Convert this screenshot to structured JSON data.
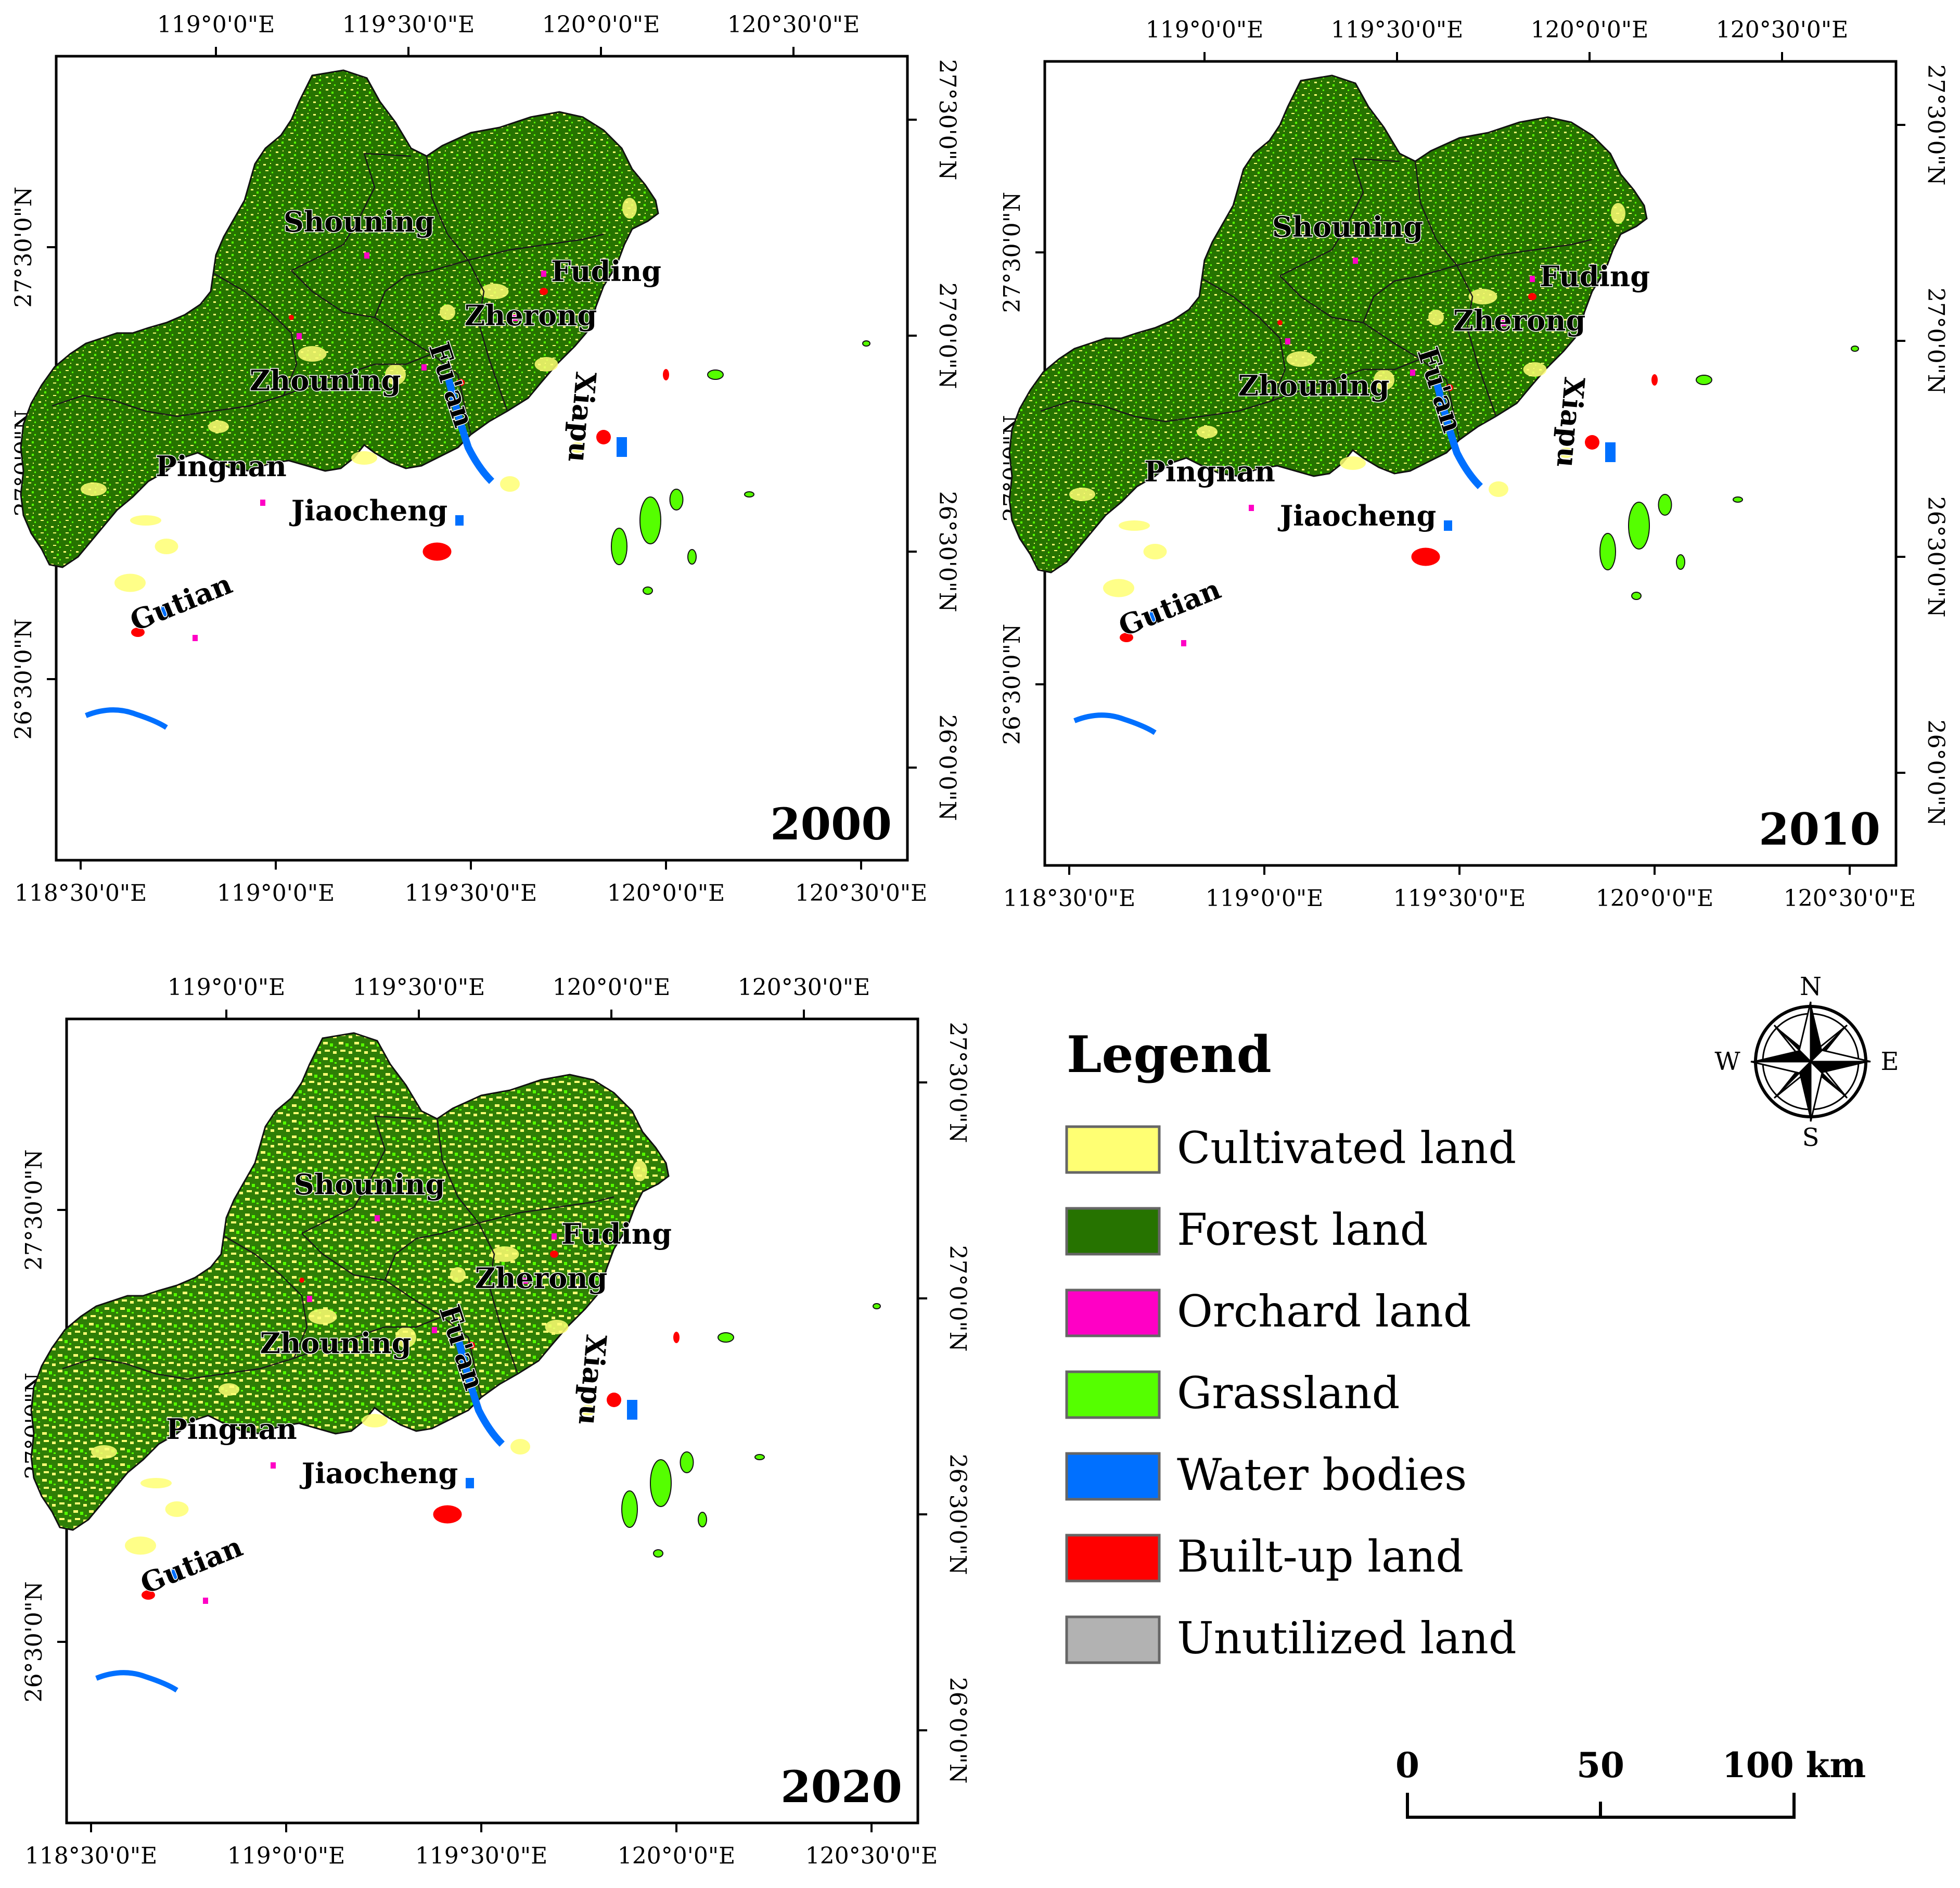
{
  "colors": {
    "cultivated": "#ffff73",
    "forest": "#267300",
    "orchard": "#ff00c5",
    "grassland": "#55ff00",
    "water": "#0070ff",
    "builtup": "#ff0000",
    "unutilized": "#b2b2b2"
  },
  "axes": {
    "top_lon_labels": [
      "119°0'0\"E",
      "119°30'0\"E",
      "120°0'0\"E",
      "120°30'0\"E"
    ],
    "bottom_lon_labels": [
      "118°30'0\"E",
      "119°0'0\"E",
      "119°30'0\"E",
      "120°0'0\"E",
      "120°30'0\"E"
    ],
    "left_lat_labels": [
      "27°30'0\"N",
      "27°0'0\"N",
      "26°30'0\"N"
    ],
    "right_lat_labels": [
      "27°30'0\"N",
      "27°0'0\"N",
      "26°30'0\"N",
      "26°0'0\"N"
    ]
  },
  "panels": [
    {
      "year": "2000"
    },
    {
      "year": "2010"
    },
    {
      "year": "2020"
    }
  ],
  "counties": [
    "Shouning",
    "Fuding",
    "Zherong",
    "Zhouning",
    "Fu'an",
    "Xiapu",
    "Pingnan",
    "Jiaocheng",
    "Gutian"
  ],
  "legend": {
    "title": "Legend",
    "items": [
      {
        "label": "Cultivated land",
        "color": "#ffff73"
      },
      {
        "label": "Forest land",
        "color": "#267300"
      },
      {
        "label": "Orchard land",
        "color": "#ff00c5"
      },
      {
        "label": "Grassland",
        "color": "#55ff00"
      },
      {
        "label": "Water bodies",
        "color": "#0070ff"
      },
      {
        "label": "Built-up land",
        "color": "#ff0000"
      },
      {
        "label": "Unutilized land",
        "color": "#b2b2b2"
      }
    ]
  },
  "compass": {
    "n": "N",
    "e": "E",
    "s": "S",
    "w": "W"
  },
  "scale_bar": {
    "labels": [
      "0",
      "50",
      "100 km"
    ]
  }
}
